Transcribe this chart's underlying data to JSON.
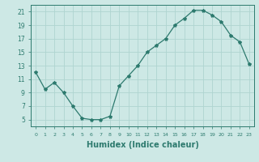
{
  "x": [
    0,
    1,
    2,
    3,
    4,
    5,
    6,
    7,
    8,
    9,
    10,
    11,
    12,
    13,
    14,
    15,
    16,
    17,
    18,
    19,
    20,
    21,
    22,
    23
  ],
  "y": [
    12.0,
    9.5,
    10.5,
    9.0,
    7.0,
    5.2,
    5.0,
    5.0,
    5.5,
    10.0,
    11.5,
    13.0,
    15.0,
    16.0,
    17.0,
    19.0,
    20.0,
    21.2,
    21.2,
    20.5,
    19.5,
    17.5,
    16.5,
    13.2
  ],
  "line_color": "#2d7a6e",
  "marker": "*",
  "background_color": "#cde8e5",
  "grid_color": "#afd4d0",
  "xlabel": "Humidex (Indice chaleur)",
  "xlabel_fontsize": 7,
  "yticks": [
    5,
    7,
    9,
    11,
    13,
    15,
    17,
    19,
    21
  ],
  "xticks": [
    0,
    1,
    2,
    3,
    4,
    5,
    6,
    7,
    8,
    9,
    10,
    11,
    12,
    13,
    14,
    15,
    16,
    17,
    18,
    19,
    20,
    21,
    22,
    23
  ],
  "xlim": [
    -0.5,
    23.5
  ],
  "ylim": [
    4,
    22
  ]
}
